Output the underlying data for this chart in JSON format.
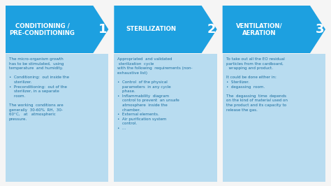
{
  "background_color": "#f5f5f5",
  "arrow_color": "#1da0e0",
  "box_color": "#b8dcf0",
  "text_color_white": "#ffffff",
  "text_color_dark": "#1a6ea0",
  "fig_w": 4.74,
  "fig_h": 2.66,
  "dpi": 100,
  "steps": [
    {
      "title": "CONDITIONING /\nPRE-CONDITIONING",
      "number": "1",
      "body_text": "The micro-organism growth\nhas to be stimulated,  using\ntemperature  and humidity.\n\n•  Conditioning:  out inside the\n    sterilizer.\n•  Preconditioning:  out of the\n    sterilizer, in a separate\n    room.\n\nThe working  conditions are\ngenerally  30-60%  RH,  30-\n60°C,   at   atmospheric\npressure."
    },
    {
      "title": "STERILIZATION",
      "number": "2",
      "body_text": "Appropriated  and validated\n sterilization  cycle\nwith the following  requirements (non-\nexhaustive list)\n\n•  Control  of the physical\n    parameters  in any cycle\n    phase.\n•  Inflammability  diagram\n    control to prevent  an unsafe\n    atmosphere  inside the\n    chamber.\n•  External elements.\n•  Air purification system\n    control.\n•  ..."
    },
    {
      "title": "VENTILATION/\nAERATION",
      "number": "3",
      "body_text": "To take out all the EO residual\nparticles from the cardboard,\n  wrapping and product.\n\nIt could be done either in:\n•  Sterilizer.\n•  degassing  room.\n\nThe  degassing  time  depends\non the kind of material used on\nthe product and its capacity to\nrelease the gas."
    }
  ]
}
